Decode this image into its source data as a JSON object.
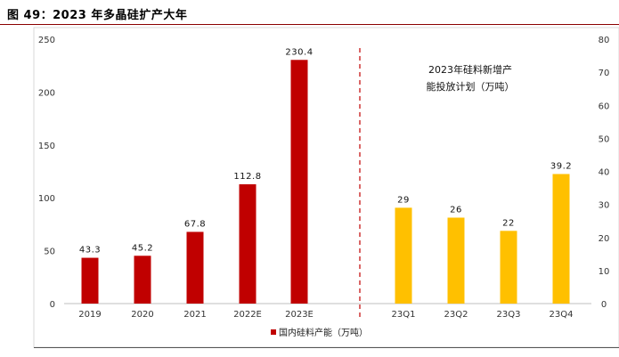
{
  "figure": {
    "title": "图 49：2023 年多晶硅扩产大年"
  },
  "chart_data": {
    "type": "bar",
    "annotation": [
      "2023年硅料新增产",
      "能投放计划（万吨）"
    ],
    "legend": {
      "label": "国内硅料产能（万吨）",
      "position": "bottom"
    },
    "grid": false,
    "left_axis": {
      "ylim": [
        0,
        250
      ],
      "ticks": [
        0,
        50,
        100,
        150,
        200,
        250
      ]
    },
    "right_axis": {
      "ylim": [
        0,
        80
      ],
      "ticks": [
        0,
        10,
        20,
        30,
        40,
        50,
        60,
        70,
        80
      ]
    },
    "series": [
      {
        "axis": "left",
        "color": "#c00000",
        "categories": [
          "2019",
          "2020",
          "2021",
          "2022E",
          "2023E"
        ],
        "values": [
          43.3,
          45.2,
          67.8,
          112.8,
          230.4
        ],
        "labels": [
          "43.3",
          "45.2",
          "67.8",
          "112.8",
          "230.4"
        ]
      },
      {
        "axis": "right",
        "color": "#ffc000",
        "categories": [
          "23Q1",
          "23Q2",
          "23Q3",
          "23Q4"
        ],
        "values": [
          29,
          26,
          22,
          39.2
        ],
        "labels": [
          "29",
          "26",
          "22",
          "39.2"
        ]
      }
    ]
  }
}
